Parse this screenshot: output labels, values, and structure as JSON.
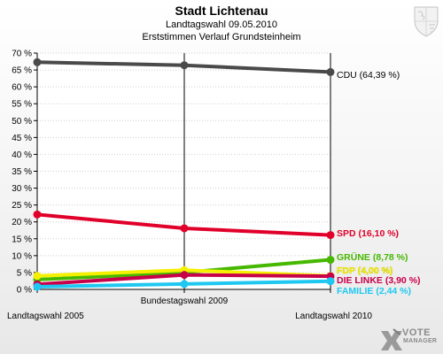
{
  "title": "Stadt Lichtenau",
  "subtitle": "Landtagswahl 09.05.2010",
  "subtitle2": "Erststimmen Verlauf Grundsteinheim",
  "logo": {
    "icon": "x-ballot-icon",
    "line1": "VOTE",
    "line2": "MANAGER"
  },
  "crest_icon": "coat-of-arms-icon",
  "chart_data": {
    "type": "line",
    "title": "Stadt Lichtenau",
    "x": [
      "Landtagswahl 2005",
      "Bundestagswahl 2009",
      "Landtagswahl 2010"
    ],
    "ylim": [
      0,
      70
    ],
    "yticks": [
      "0 %",
      "5 %",
      "10 %",
      "15 %",
      "20 %",
      "25 %",
      "30 %",
      "35 %",
      "40 %",
      "45 %",
      "50 %",
      "55 %",
      "60 %",
      "65 %",
      "70 %"
    ],
    "grid": true,
    "series": [
      {
        "name": "CDU",
        "label": "CDU (64,39 %)",
        "color": "#4a4a4a",
        "values": [
          67.3,
          66.4,
          64.39
        ]
      },
      {
        "name": "SPD",
        "label": "SPD (16,10 %)",
        "color": "#e0002a",
        "values": [
          22.2,
          18.1,
          16.1
        ]
      },
      {
        "name": "GRÜNE",
        "label": "GRÜNE (8,78 %)",
        "color": "#46b800",
        "values": [
          2.9,
          5.0,
          8.78
        ]
      },
      {
        "name": "FDP",
        "label": "FDP (4,00 %)",
        "color": "#f5f000",
        "values": [
          4.0,
          5.7,
          4.0
        ]
      },
      {
        "name": "DIE LINKE",
        "label": "DIE LINKE (3,90 %)",
        "color": "#c8004a",
        "values": [
          1.5,
          4.3,
          3.9
        ]
      },
      {
        "name": "FAMILIE",
        "label": "FAMILIE (2,44 %)",
        "color": "#1ec8f0",
        "values": [
          0.8,
          1.6,
          2.44
        ]
      }
    ]
  }
}
